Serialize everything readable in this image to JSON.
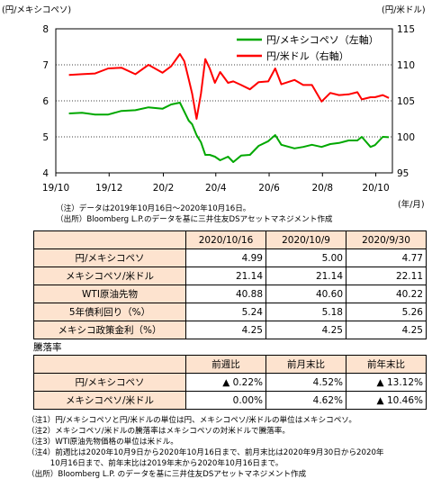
{
  "chart_data": {
    "type": "line",
    "left_unit": "(円/メキシコペソ)",
    "right_unit": "(円/米ドル)",
    "x_unit": "(年/月)",
    "x_ticks": [
      "19/10",
      "19/12",
      "20/2",
      "20/4",
      "20/6",
      "20/8",
      "20/10"
    ],
    "y_left_ticks": [
      "8",
      "7",
      "6",
      "5",
      "4"
    ],
    "y_right_ticks": [
      "115",
      "110",
      "105",
      "100",
      "95"
    ],
    "ylim_left": [
      4,
      8
    ],
    "ylim_right": [
      95,
      115
    ],
    "grid": true,
    "legend_position": "top-right",
    "series": [
      {
        "name": "円/メキシコペソ（左軸）",
        "axis": "left",
        "color": "#00a800",
        "points": [
          [
            "2019-10-16",
            5.65
          ],
          [
            "2019-10-31",
            5.67
          ],
          [
            "2019-11-15",
            5.62
          ],
          [
            "2019-11-30",
            5.62
          ],
          [
            "2019-12-15",
            5.72
          ],
          [
            "2019-12-31",
            5.74
          ],
          [
            "2020-01-15",
            5.82
          ],
          [
            "2020-01-31",
            5.78
          ],
          [
            "2020-02-10",
            5.9
          ],
          [
            "2020-02-20",
            5.95
          ],
          [
            "2020-02-25",
            5.7
          ],
          [
            "2020-03-01",
            5.45
          ],
          [
            "2020-03-05",
            5.35
          ],
          [
            "2020-03-10",
            5.05
          ],
          [
            "2020-03-15",
            4.85
          ],
          [
            "2020-03-20",
            4.5
          ],
          [
            "2020-03-25",
            4.5
          ],
          [
            "2020-03-31",
            4.45
          ],
          [
            "2020-04-06",
            4.35
          ],
          [
            "2020-04-15",
            4.45
          ],
          [
            "2020-04-21",
            4.3
          ],
          [
            "2020-04-30",
            4.48
          ],
          [
            "2020-05-10",
            4.5
          ],
          [
            "2020-05-20",
            4.75
          ],
          [
            "2020-05-31",
            4.88
          ],
          [
            "2020-06-08",
            5.05
          ],
          [
            "2020-06-15",
            4.78
          ],
          [
            "2020-06-30",
            4.68
          ],
          [
            "2020-07-10",
            4.72
          ],
          [
            "2020-07-20",
            4.78
          ],
          [
            "2020-07-31",
            4.72
          ],
          [
            "2020-08-10",
            4.8
          ],
          [
            "2020-08-20",
            4.83
          ],
          [
            "2020-08-31",
            4.9
          ],
          [
            "2020-09-10",
            4.9
          ],
          [
            "2020-09-15",
            5.0
          ],
          [
            "2020-09-25",
            4.72
          ],
          [
            "2020-09-30",
            4.77
          ],
          [
            "2020-10-09",
            5.0
          ],
          [
            "2020-10-16",
            4.99
          ]
        ]
      },
      {
        "name": "円/米ドル（右軸）",
        "axis": "right",
        "color": "#ff0000",
        "points": [
          [
            "2019-10-16",
            108.6
          ],
          [
            "2019-10-31",
            108.7
          ],
          [
            "2019-11-15",
            108.8
          ],
          [
            "2019-11-30",
            109.5
          ],
          [
            "2019-12-15",
            109.6
          ],
          [
            "2019-12-31",
            108.7
          ],
          [
            "2020-01-15",
            110.0
          ],
          [
            "2020-01-31",
            108.9
          ],
          [
            "2020-02-10",
            109.8
          ],
          [
            "2020-02-20",
            111.5
          ],
          [
            "2020-02-25",
            110.5
          ],
          [
            "2020-03-01",
            108.0
          ],
          [
            "2020-03-05",
            106.0
          ],
          [
            "2020-03-10",
            102.5
          ],
          [
            "2020-03-15",
            106.0
          ],
          [
            "2020-03-20",
            110.8
          ],
          [
            "2020-03-25",
            109.5
          ],
          [
            "2020-03-31",
            107.5
          ],
          [
            "2020-04-06",
            109.0
          ],
          [
            "2020-04-15",
            107.5
          ],
          [
            "2020-04-21",
            107.7
          ],
          [
            "2020-04-30",
            107.2
          ],
          [
            "2020-05-10",
            106.6
          ],
          [
            "2020-05-20",
            107.6
          ],
          [
            "2020-05-31",
            107.7
          ],
          [
            "2020-06-08",
            109.5
          ],
          [
            "2020-06-15",
            107.3
          ],
          [
            "2020-06-30",
            107.9
          ],
          [
            "2020-07-10",
            107.2
          ],
          [
            "2020-07-20",
            107.2
          ],
          [
            "2020-07-31",
            104.9
          ],
          [
            "2020-08-10",
            106.1
          ],
          [
            "2020-08-20",
            105.8
          ],
          [
            "2020-08-31",
            105.9
          ],
          [
            "2020-09-10",
            106.2
          ],
          [
            "2020-09-15",
            105.2
          ],
          [
            "2020-09-25",
            105.5
          ],
          [
            "2020-09-30",
            105.5
          ],
          [
            "2020-10-09",
            105.8
          ],
          [
            "2020-10-16",
            105.4
          ]
        ]
      }
    ]
  },
  "chart_notes": [
    "（注）データは2019年10月16日～2020年10月16日。",
    "（出所）Bloomberg L.P.のデータを基に三井住友DSアセットマネジメント作成"
  ],
  "table1": {
    "headers": [
      "2020/10/16",
      "2020/10/9",
      "2020/9/30"
    ],
    "rows": [
      {
        "label": "円/メキシコペソ",
        "values": [
          "4.99",
          "5.00",
          "4.77"
        ]
      },
      {
        "label": "メキシコペソ/米ドル",
        "values": [
          "21.14",
          "21.14",
          "22.11"
        ]
      },
      {
        "label": "WTI原油先物",
        "values": [
          "40.88",
          "40.60",
          "40.22"
        ]
      },
      {
        "label": "5年債利回り（%）",
        "values": [
          "5.24",
          "5.18",
          "5.26"
        ]
      },
      {
        "label": "メキシコ政策金利（%）",
        "values": [
          "4.25",
          "4.25",
          "4.25"
        ]
      }
    ]
  },
  "table2": {
    "title": "騰落率",
    "headers": [
      "前週比",
      "前月末比",
      "前年末比"
    ],
    "rows": [
      {
        "label": "円/メキシコペソ",
        "values": [
          "▲ 0.22%",
          "4.52%",
          "▲ 13.12%"
        ]
      },
      {
        "label": "メキシコペソ/米ドル",
        "values": [
          "0.00%",
          "4.62%",
          "▲ 10.46%"
        ]
      }
    ]
  },
  "footnotes": [
    "（注1）円/メキシコペソと円/米ドルの単位は円、メキシコペソ/米ドルの単位はメキシコペソ。",
    "（注2）メキシコペソ/米ドルの騰落率はメキシコペソの対米ドルで騰落率。",
    "（注3）WTI原油先物価格の単位は米ドル。",
    "（注4）前週比は2020年10月9日から2020年10月16日まで、前月末比は2020年9月30日から2020年",
    "　　　10月16日まで、前年末比は2019年末から2020年10月16日まで。",
    "（出所）Bloomberg L.P. のデータを基に三井住友DSアセットマネジメント作成"
  ]
}
